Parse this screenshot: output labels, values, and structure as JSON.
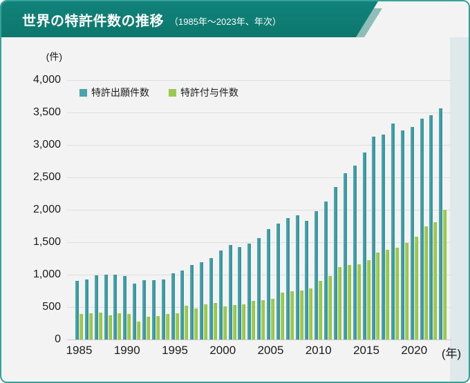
{
  "title": {
    "main": "世界の特許件数の推移",
    "sub": "（1985年〜2023年、年次）"
  },
  "unit_label": "(件)",
  "axis": {
    "y_ticks": [
      "4,000",
      "3,500",
      "3,000",
      "2,500",
      "2,000",
      "1,500",
      "1,000",
      "500",
      "0"
    ],
    "y_tick_values": [
      4000,
      3500,
      3000,
      2500,
      2000,
      1500,
      1000,
      500,
      0
    ],
    "x_ticks": [
      "1985",
      "1990",
      "1995",
      "2000",
      "2005",
      "2010",
      "2015",
      "2020"
    ],
    "x_tick_years": [
      1985,
      1990,
      1995,
      2000,
      2005,
      2010,
      2015,
      2020
    ],
    "x_suffix": "(年)"
  },
  "legend": {
    "items": [
      {
        "label": "特許出願件数",
        "color": "#4ba3ab"
      },
      {
        "label": "特許付与件数",
        "color": "#9cc94f"
      }
    ]
  },
  "colors": {
    "banner": "#0e7c73",
    "banner_stripe": "#8fbdb8",
    "card_border": "#35a199",
    "card_background": "#f2f3f2",
    "side_background": "#dfe9eb",
    "applications_bar": "#3d99a1",
    "grants_bar": "#9cc94f",
    "gridline": "#dcdede"
  },
  "chart_data": {
    "type": "bar",
    "title": "世界の特許件数の推移（1985年〜2023年、年次）",
    "xlabel": "(年)",
    "ylabel": "(件)",
    "ylim": [
      0,
      4000
    ],
    "ytick_step": 500,
    "grid": true,
    "legend_position": "top-left-inside",
    "categories": [
      1985,
      1986,
      1987,
      1988,
      1989,
      1990,
      1991,
      1992,
      1993,
      1994,
      1995,
      1996,
      1997,
      1998,
      1999,
      2000,
      2001,
      2002,
      2003,
      2004,
      2005,
      2006,
      2007,
      2008,
      2009,
      2010,
      2011,
      2012,
      2013,
      2014,
      2015,
      2016,
      2017,
      2018,
      2019,
      2020,
      2021,
      2022,
      2023
    ],
    "series": [
      {
        "name": "特許出願件数",
        "color": "#3d99a1",
        "values": [
          900,
          930,
          985,
          1000,
          1005,
          980,
          865,
          920,
          920,
          925,
          1020,
          1065,
          1145,
          1195,
          1255,
          1370,
          1455,
          1425,
          1475,
          1565,
          1700,
          1790,
          1875,
          1920,
          1830,
          1975,
          2130,
          2350,
          2560,
          2680,
          2885,
          3125,
          3160,
          3325,
          3225,
          3275,
          3400,
          3460,
          3560
        ]
      },
      {
        "name": "特許付与件数",
        "color": "#9cc94f",
        "values": [
          390,
          400,
          410,
          375,
          405,
          390,
          280,
          350,
          365,
          390,
          405,
          525,
          480,
          545,
          565,
          510,
          535,
          545,
          595,
          605,
          625,
          725,
          750,
          760,
          790,
          900,
          975,
          1120,
          1150,
          1155,
          1225,
          1340,
          1385,
          1410,
          1490,
          1585,
          1740,
          1810,
          2000
        ]
      }
    ]
  }
}
